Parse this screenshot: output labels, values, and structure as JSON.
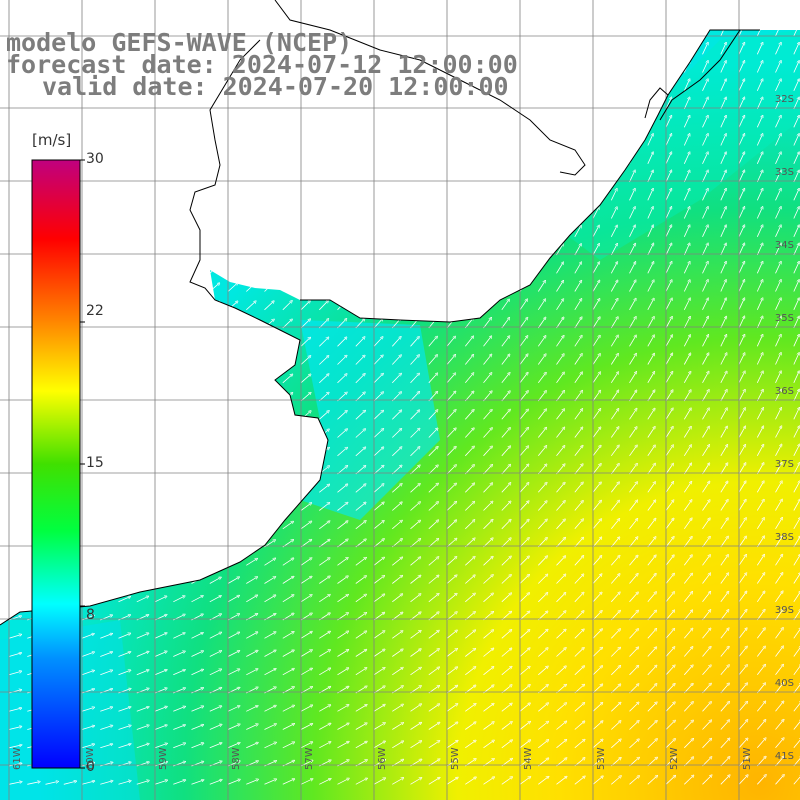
{
  "title": {
    "line1": "modelo GEFS-WAVE (NCEP)",
    "line2": "forecast date: 2024-07-12 12:00:00",
    "line3": "valid date: 2024-07-20 12:00:00"
  },
  "colorbar": {
    "unit": "[m/s]",
    "ticks": [
      "30",
      "22",
      "15",
      "8",
      "0"
    ],
    "tick_values": [
      30,
      22,
      15,
      8,
      0
    ],
    "colors": [
      "#0000ff",
      "#00bfff",
      "#00ffff",
      "#00ff00",
      "#ffff00",
      "#ff8000",
      "#ff0000",
      "#c0007f"
    ]
  },
  "map": {
    "lat_labels": [
      "32S",
      "33S",
      "34S",
      "35S",
      "36S",
      "37S",
      "38S",
      "39S",
      "40S",
      "41S"
    ],
    "lon_labels": [
      "61W",
      "60W",
      "59W",
      "58W",
      "57W",
      "56W",
      "55W",
      "54W",
      "53W",
      "52W",
      "51W"
    ],
    "land_color": "#ffffff",
    "coast_color": "#000000",
    "grid_color": "#808080"
  }
}
